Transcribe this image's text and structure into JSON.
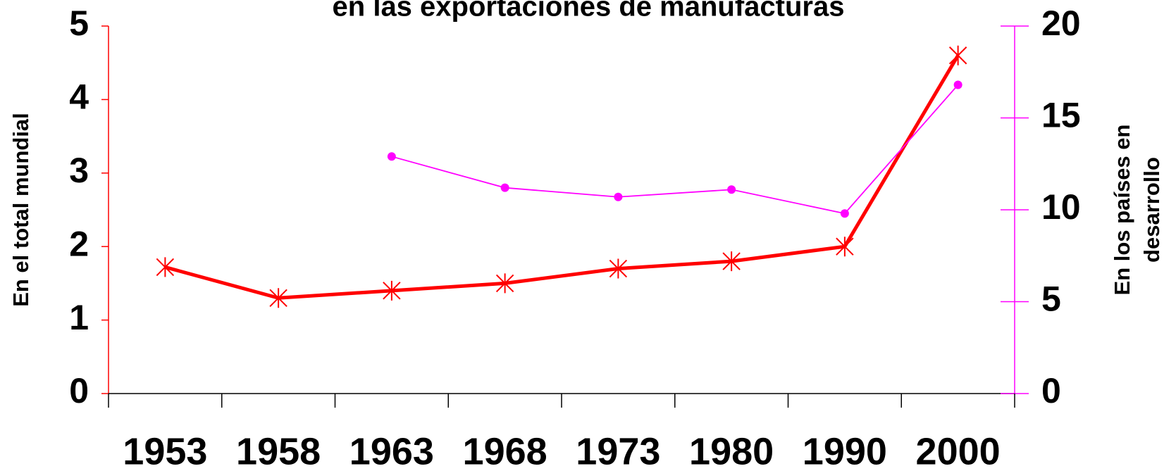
{
  "chart_data": {
    "type": "line",
    "title": "en las exportaciones de manufacturas",
    "y_label": "En el total mundial",
    "y2_label": [
      "En los países en",
      "desarrollo"
    ],
    "categories": [
      "1953",
      "1958",
      "1963",
      "1968",
      "1973",
      "1980",
      "1990",
      "2000"
    ],
    "series": [
      {
        "name": "En el total mundial",
        "color": "#ff0000",
        "values": [
          1.72,
          1.3,
          1.4,
          1.5,
          1.7,
          1.8,
          2.0,
          4.6
        ]
      },
      {
        "name": "En los países en desarrollo",
        "color": "#ff00ff",
        "axis": "y2",
        "values": [
          null,
          null,
          12.9,
          11.2,
          10.7,
          11.1,
          9.8,
          16.8
        ]
      }
    ],
    "ylim": [
      0,
      5
    ],
    "yticks": [
      0,
      1,
      2,
      3,
      4,
      5
    ],
    "y2lim": [
      0,
      20
    ],
    "y2ticks": [
      0,
      5,
      10,
      15,
      20
    ],
    "grid": false
  }
}
